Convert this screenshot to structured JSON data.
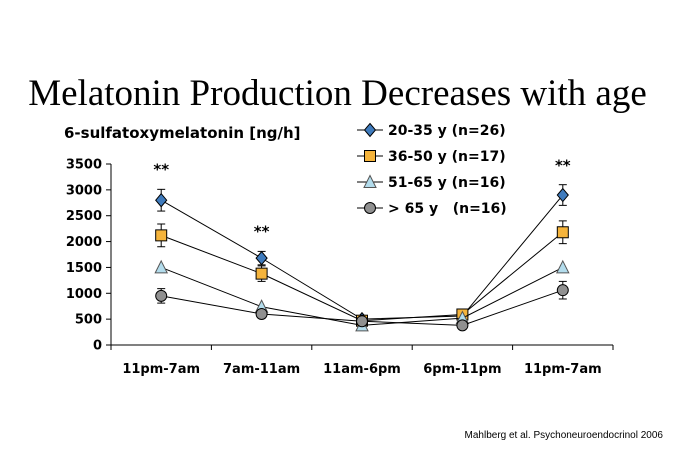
{
  "slide": {
    "title": "Melatonin Production Decreases with age",
    "citation": "Mahlberg et al. Psychoneuroendocrinol 2006"
  },
  "chart_data": {
    "type": "line",
    "ylabel": "6-sulfatoxymelatonin [ng/h]",
    "categories": [
      "11pm-7am",
      "7am-11am",
      "11am-6pm",
      "6pm-11pm",
      "11pm-7am"
    ],
    "yticks": [
      0,
      500,
      1000,
      1500,
      2000,
      2500,
      3000,
      3500
    ],
    "ylim": [
      0,
      3500
    ],
    "grid": false,
    "legend_position": "top-right",
    "series": [
      {
        "name": "20-35 y (n=26)",
        "values": [
          2800,
          1680,
          500,
          560,
          2900
        ],
        "errors": [
          210,
          130,
          60,
          70,
          200
        ],
        "color": "#3f7bbd",
        "marker": "diamond"
      },
      {
        "name": "36-50 y (n=17)",
        "values": [
          2120,
          1380,
          470,
          590,
          2180
        ],
        "errors": [
          220,
          150,
          60,
          70,
          220
        ],
        "color": "#f5b43c",
        "marker": "square"
      },
      {
        "name": "51-65 y (n=16)",
        "values": [
          1500,
          740,
          380,
          520,
          1500
        ],
        "errors": [
          0,
          0,
          0,
          0,
          0
        ],
        "color": "#b3dcec",
        "marker": "triangle"
      },
      {
        "name": "> 65 y   (n=16)",
        "values": [
          950,
          600,
          460,
          380,
          1060
        ],
        "errors": [
          140,
          80,
          50,
          50,
          170
        ],
        "color": "#909090",
        "marker": "circle"
      }
    ],
    "annotations": [
      {
        "text": "**",
        "category_index": 0,
        "y": 3300
      },
      {
        "text": "**",
        "category_index": 1,
        "y": 2100
      },
      {
        "text": "**",
        "category_index": 4,
        "y": 3370
      }
    ]
  }
}
